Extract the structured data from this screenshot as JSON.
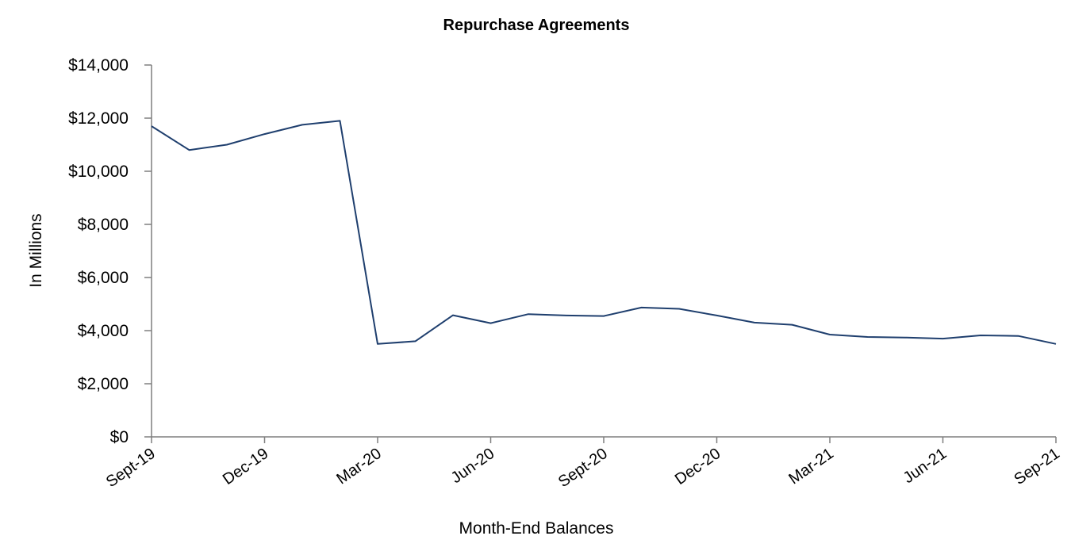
{
  "chart_data": {
    "type": "line",
    "title": "Repurchase Agreements",
    "xlabel": "Month-End Balances",
    "ylabel": "In Millions",
    "ylim": [
      0,
      14000
    ],
    "y_ticks": [
      {
        "value": 0,
        "label": "$0"
      },
      {
        "value": 2000,
        "label": "$2,000"
      },
      {
        "value": 4000,
        "label": "$4,000"
      },
      {
        "value": 6000,
        "label": "$6,000"
      },
      {
        "value": 8000,
        "label": "$8,000"
      },
      {
        "value": 10000,
        "label": "$10,000"
      },
      {
        "value": 12000,
        "label": "$12,000"
      },
      {
        "value": 14000,
        "label": "$14,000"
      }
    ],
    "x_ticks": [
      {
        "index": 0,
        "label": "Sept-19"
      },
      {
        "index": 3,
        "label": "Dec-19"
      },
      {
        "index": 6,
        "label": "Mar-20"
      },
      {
        "index": 9,
        "label": "Jun-20"
      },
      {
        "index": 12,
        "label": "Sept-20"
      },
      {
        "index": 15,
        "label": "Dec-20"
      },
      {
        "index": 18,
        "label": "Mar-21"
      },
      {
        "index": 21,
        "label": "Jun-21"
      },
      {
        "index": 24,
        "label": "Sep-21"
      }
    ],
    "series": [
      {
        "color": "#1f3f6e",
        "values": [
          11700,
          10800,
          11000,
          11400,
          11750,
          11900,
          3500,
          3600,
          4580,
          4280,
          4620,
          4570,
          4550,
          4870,
          4820,
          4570,
          4300,
          4220,
          3850,
          3760,
          3740,
          3700,
          3820,
          3800,
          3500
        ]
      }
    ],
    "grid": false,
    "legend": "none"
  }
}
